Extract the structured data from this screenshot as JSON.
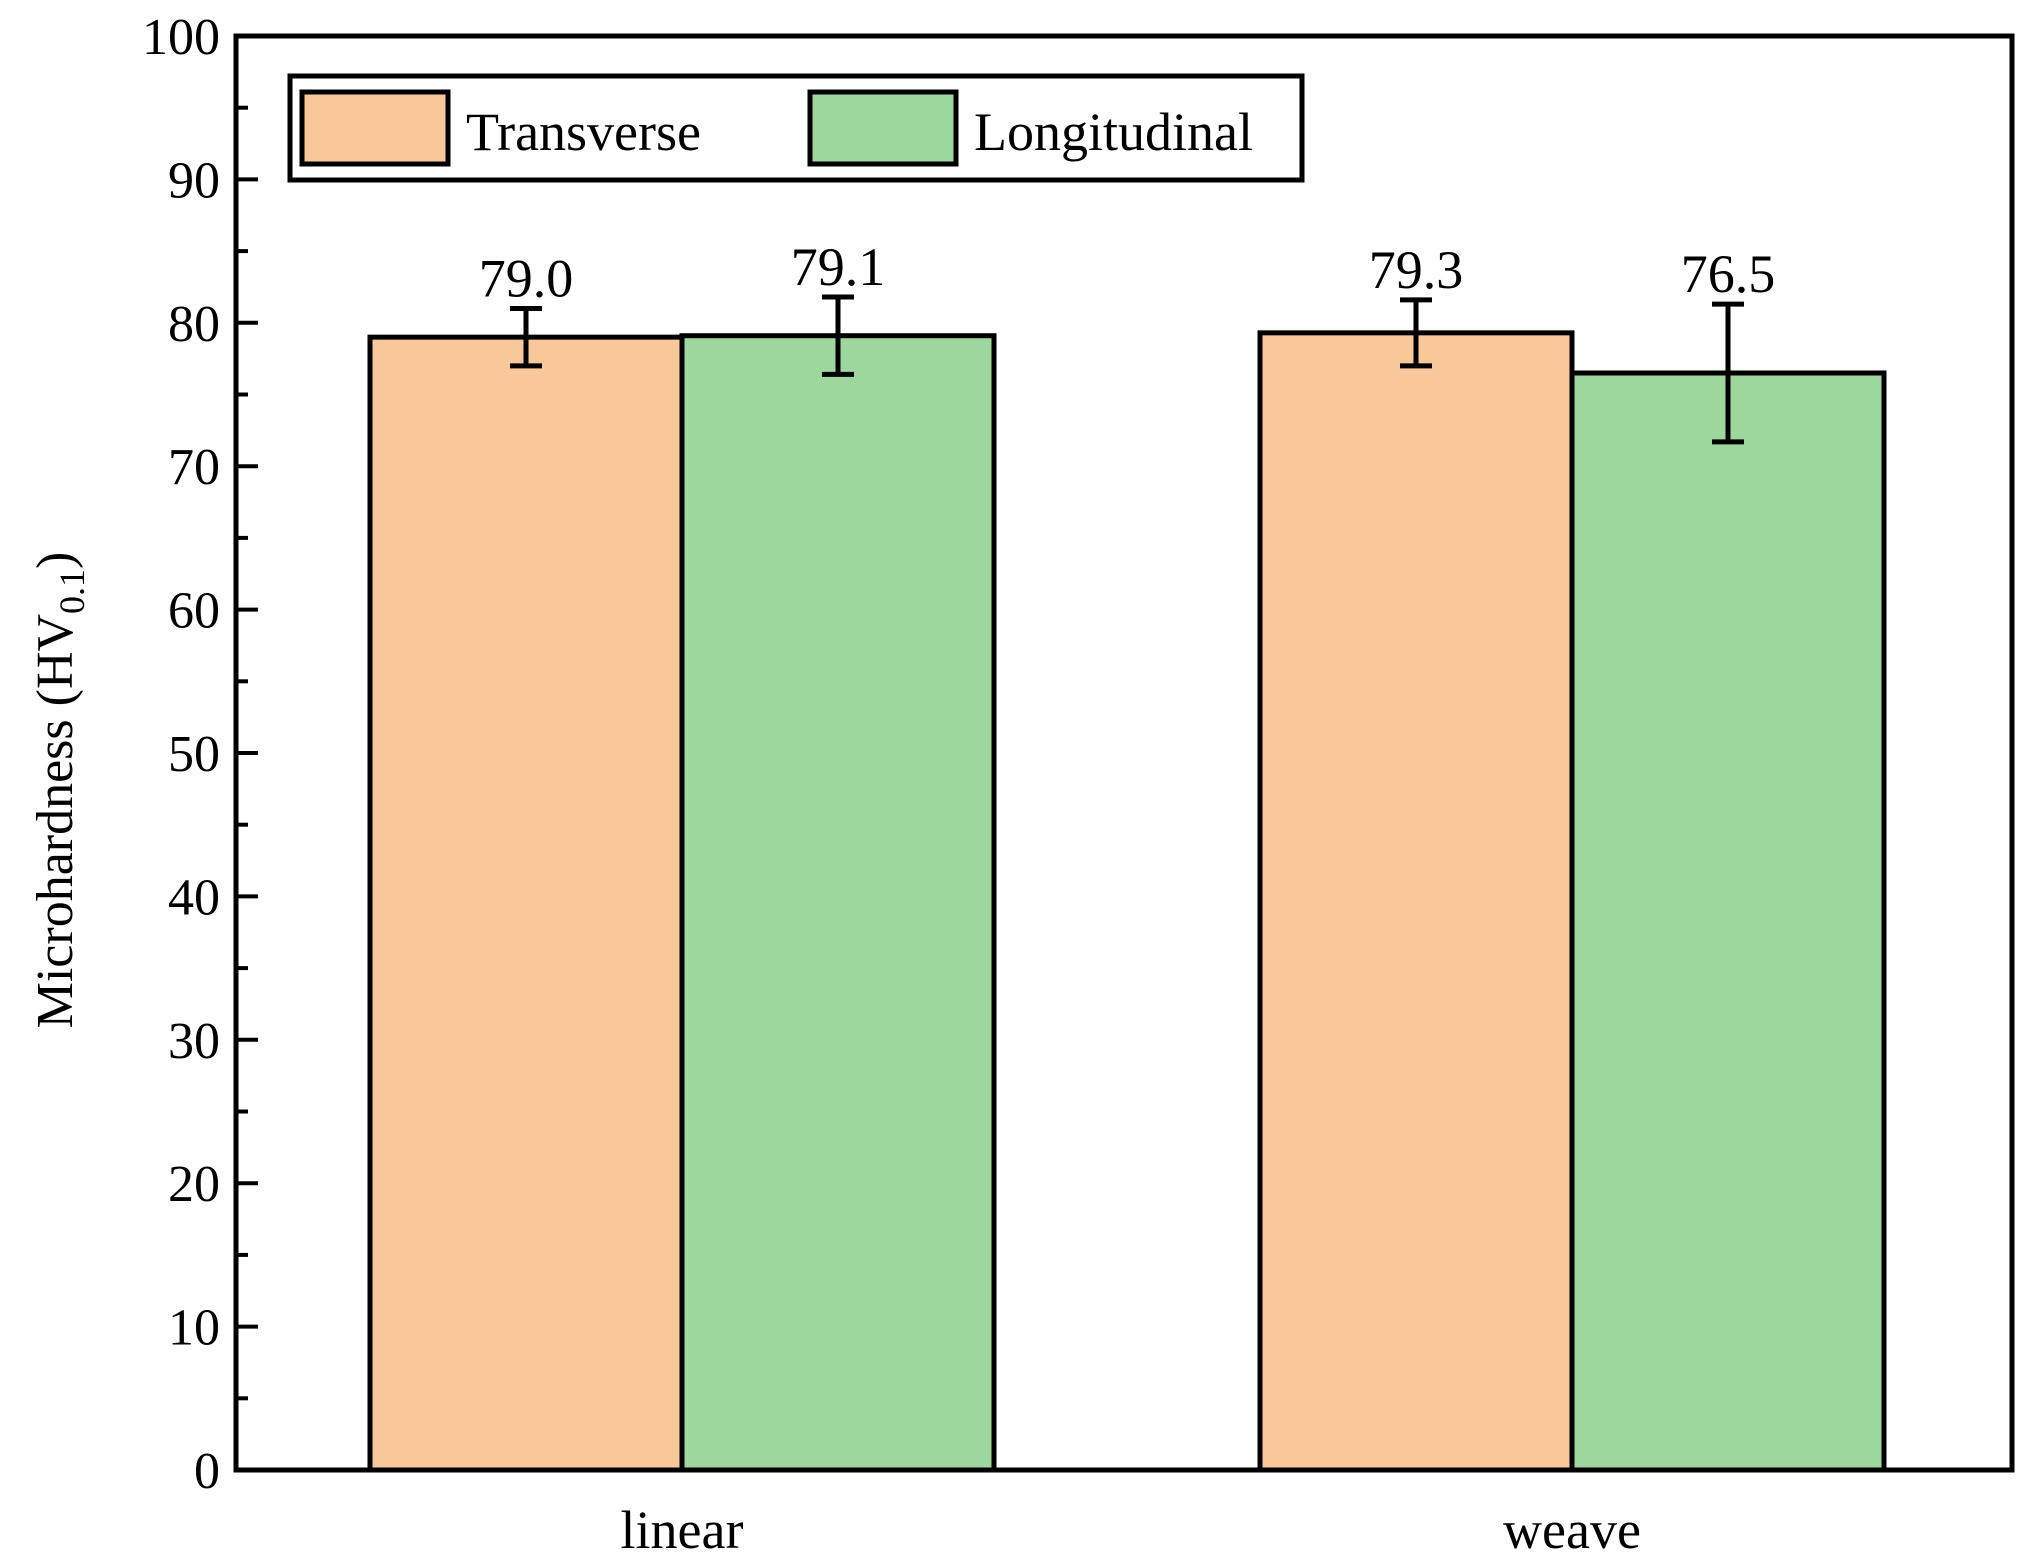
{
  "chart_data": {
    "type": "bar",
    "title": "",
    "xlabel": "",
    "ylabel": "Microhardness (HV",
    "ylabel_sub": "0.1",
    "ylabel_close": ")",
    "ylim": [
      0,
      100
    ],
    "yticks": [
      0,
      10,
      20,
      30,
      40,
      50,
      60,
      70,
      80,
      90,
      100
    ],
    "categories": [
      "linear",
      "weave"
    ],
    "series": [
      {
        "name": "Transverse",
        "color": "#F9C89A",
        "values": [
          79.0,
          79.3
        ],
        "value_labels": [
          "79.0",
          "79.3"
        ],
        "errors": [
          2.0,
          2.3
        ]
      },
      {
        "name": "Longitudinal",
        "color": "#9DD79D",
        "values": [
          79.1,
          76.5
        ],
        "value_labels": [
          "79.1",
          "76.5"
        ],
        "errors": [
          2.7,
          4.8
        ]
      }
    ],
    "legend_position": "top-left",
    "grid": false
  }
}
